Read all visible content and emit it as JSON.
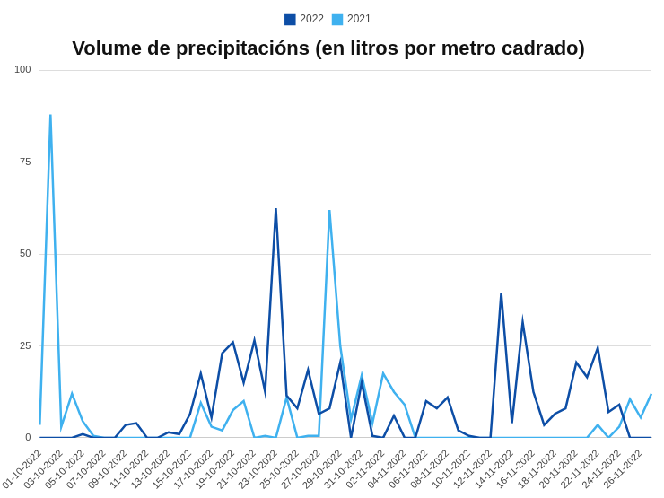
{
  "chart_data": {
    "type": "line",
    "title": "Volume de precipitacións (en litros por metro cadrado)",
    "categories": [
      "01-10-2022",
      null,
      "03-10-2022",
      null,
      "05-10-2022",
      null,
      "07-10-2022",
      null,
      "09-10-2022",
      null,
      "11-10-2022",
      null,
      "13-10-2022",
      null,
      "15-10-2022",
      null,
      "17-10-2022",
      null,
      "19-10-2022",
      null,
      "21-10-2022",
      null,
      "23-10-2022",
      null,
      "25-10-2022",
      null,
      "27-10-2022",
      null,
      "29-10-2022",
      null,
      "31-10-2022",
      null,
      "02-11-2022",
      null,
      "04-11-2022",
      null,
      "06-11-2022",
      null,
      "08-11-2022",
      null,
      "10-11-2022",
      null,
      "12-11-2022",
      null,
      "14-11-2022",
      null,
      "16-11-2022",
      null,
      "18-11-2022",
      null,
      "20-11-2022",
      null,
      "22-11-2022",
      null,
      "24-11-2022",
      null,
      "26-11-2022",
      null
    ],
    "series": [
      {
        "name": "2022",
        "color": "#0d4ea6",
        "values": [
          0,
          0,
          0,
          0,
          1,
          0,
          0,
          0,
          3.5,
          4,
          0,
          0,
          1.5,
          1,
          6.5,
          17.5,
          5.5,
          23,
          26,
          15,
          26.5,
          12.5,
          62.5,
          11.5,
          8,
          18.5,
          6.5,
          8,
          20.5,
          0,
          15,
          0.5,
          0,
          6,
          0,
          0,
          10,
          8,
          11,
          2,
          0.5,
          0,
          0,
          39.5,
          4,
          31.5,
          12.5,
          3.5,
          6.5,
          8,
          20.5,
          16.5,
          24.5,
          7,
          9,
          0,
          0,
          0
        ]
      },
      {
        "name": "2021",
        "color": "#3fb1ef",
        "values": [
          3.5,
          88,
          3,
          12,
          4.5,
          0.5,
          0,
          0,
          0,
          0,
          0,
          0,
          0,
          0,
          0,
          9.5,
          3,
          2,
          7.5,
          10,
          0,
          0.5,
          0,
          11,
          0,
          0.5,
          0.5,
          62,
          25,
          5,
          17,
          4,
          17.5,
          12.5,
          9,
          0,
          0,
          0,
          0,
          0,
          0,
          0,
          0,
          0,
          0,
          0,
          0,
          0,
          0,
          0,
          0,
          0,
          3.5,
          0,
          3,
          10.5,
          5.5,
          12
        ]
      }
    ],
    "ylim": [
      0,
      100
    ],
    "yticks": [
      0,
      25,
      50,
      75,
      100
    ],
    "grid": true,
    "legend": "top"
  }
}
